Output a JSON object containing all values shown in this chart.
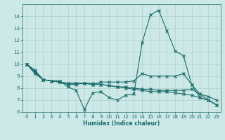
{
  "title": "",
  "xlabel": "Humidex (Indice chaleur)",
  "ylabel": "",
  "background_color": "#cce9e7",
  "grid_color": "#b0d0cc",
  "line_color": "#1a6b6b",
  "xlim": [
    -0.5,
    23.5
  ],
  "ylim": [
    6,
    15
  ],
  "xticks": [
    0,
    1,
    2,
    3,
    4,
    5,
    6,
    7,
    8,
    9,
    10,
    11,
    12,
    13,
    14,
    15,
    16,
    17,
    18,
    19,
    20,
    21,
    22,
    23
  ],
  "yticks": [
    6,
    7,
    8,
    9,
    10,
    11,
    12,
    13,
    14
  ],
  "lines": [
    [
      0,
      10.0,
      1,
      9.5,
      2,
      8.7,
      3,
      8.6,
      4,
      8.6,
      5,
      8.1,
      6,
      7.8,
      7,
      6.2,
      8,
      7.6,
      9,
      7.7,
      10,
      7.2,
      11,
      7.0,
      12,
      7.4,
      13,
      7.5,
      14,
      11.8,
      15,
      14.1,
      16,
      14.5,
      17,
      12.8,
      18,
      11.1,
      19,
      10.7,
      20,
      8.3,
      21,
      7.2,
      22,
      7.0,
      23,
      6.6
    ],
    [
      0,
      10.0,
      1,
      9.4,
      2,
      8.7,
      3,
      8.6,
      4,
      8.5,
      5,
      8.3,
      6,
      8.3,
      7,
      8.4,
      8,
      8.3,
      9,
      8.5,
      10,
      8.5,
      11,
      8.5,
      12,
      8.5,
      13,
      8.6,
      14,
      9.2,
      15,
      9.0,
      16,
      9.0,
      17,
      9.0,
      18,
      9.0,
      19,
      9.2,
      20,
      8.3,
      21,
      7.5,
      22,
      7.0,
      23,
      6.6
    ],
    [
      0,
      10.0,
      1,
      9.3,
      2,
      8.7,
      3,
      8.6,
      4,
      8.5,
      5,
      8.4,
      6,
      8.4,
      7,
      8.4,
      8,
      8.3,
      9,
      8.3,
      10,
      8.2,
      11,
      8.1,
      12,
      8.1,
      13,
      8.0,
      14,
      7.9,
      15,
      7.9,
      16,
      7.8,
      17,
      7.8,
      18,
      7.8,
      19,
      7.8,
      20,
      7.9,
      21,
      7.5,
      22,
      7.3,
      23,
      7.0
    ],
    [
      0,
      10.0,
      1,
      9.2,
      2,
      8.7,
      3,
      8.6,
      4,
      8.5,
      5,
      8.4,
      6,
      8.4,
      7,
      8.4,
      8,
      8.4,
      9,
      8.3,
      10,
      8.2,
      11,
      8.1,
      12,
      8.0,
      13,
      7.9,
      14,
      7.8,
      15,
      7.7,
      16,
      7.7,
      17,
      7.7,
      18,
      7.6,
      19,
      7.5,
      20,
      7.4,
      21,
      7.2,
      22,
      7.0,
      23,
      6.6
    ]
  ]
}
